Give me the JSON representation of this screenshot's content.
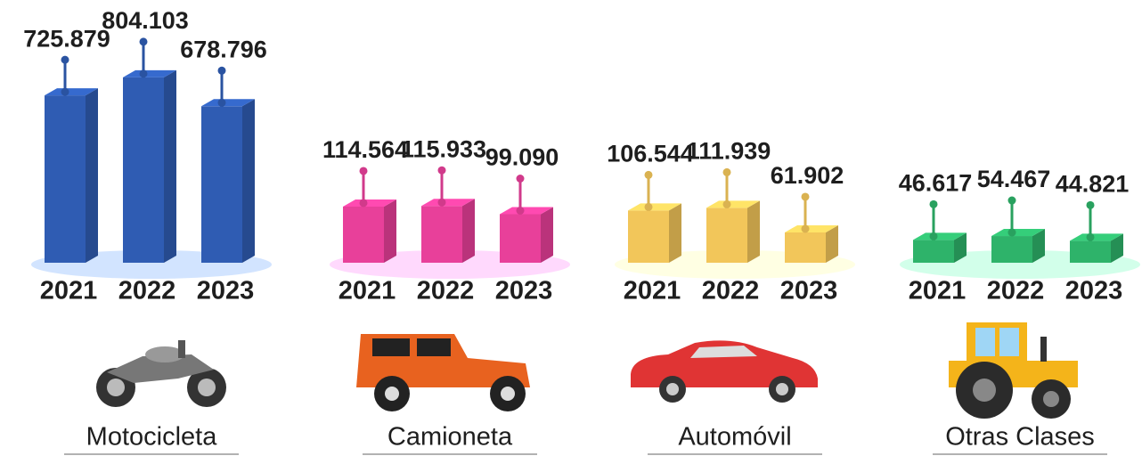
{
  "chart_data": [
    {
      "type": "bar",
      "title": "Motocicleta",
      "categories": [
        "2021",
        "2022",
        "2023"
      ],
      "values": [
        725879,
        804103,
        678796
      ],
      "value_labels": [
        "725.879",
        "804.103",
        "678.796"
      ],
      "color": "#2f5cb3",
      "ylim": [
        0,
        850000
      ]
    },
    {
      "type": "bar",
      "title": "Camioneta",
      "categories": [
        "2021",
        "2022",
        "2023"
      ],
      "values": [
        114564,
        115933,
        99090
      ],
      "value_labels": [
        "114.564",
        "115.933",
        "99.090"
      ],
      "color": "#e8409a",
      "ylim": [
        0,
        400000
      ]
    },
    {
      "type": "bar",
      "title": "Automóvil",
      "categories": [
        "2021",
        "2022",
        "2023"
      ],
      "values": [
        106544,
        111939,
        61902
      ],
      "value_labels": [
        "106.544",
        "111.939",
        "61.902"
      ],
      "color": "#f2c65a",
      "ylim": [
        0,
        400000
      ]
    },
    {
      "type": "bar",
      "title": "Otras Clases",
      "categories": [
        "2021",
        "2022",
        "2023"
      ],
      "values": [
        46617,
        54467,
        44821
      ],
      "value_labels": [
        "46.617",
        "54.467",
        "44.821"
      ],
      "color": "#2eb36a",
      "ylim": [
        0,
        400000
      ]
    }
  ]
}
